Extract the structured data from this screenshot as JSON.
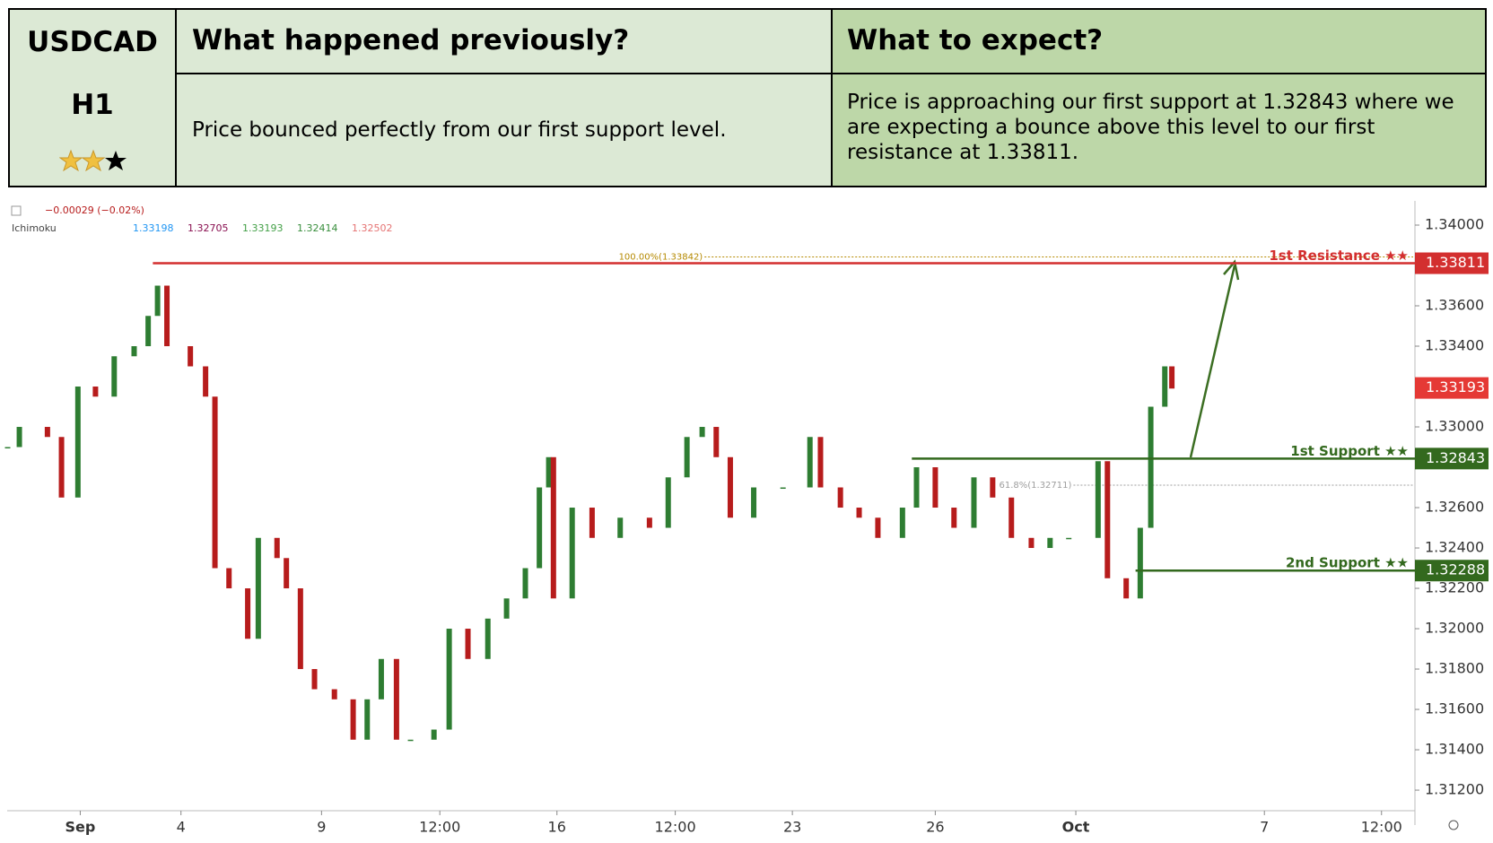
{
  "header": {
    "symbol": "USDCAD",
    "timeframe": "H1",
    "previous_title": "What happened previously?",
    "previous_text": "Price bounced perfectly from our first support level.",
    "expect_title": "What to expect?",
    "expect_text": "Price is approaching our first support at 1.32843 where we are expecting a bounce above this level to our first resistance at 1.33811."
  },
  "chart_data": {
    "type": "candlestick",
    "change": "−0.00029 (−0.02%)",
    "indicator": {
      "name": "Ichimoku",
      "values": [
        1.33198,
        1.32705,
        1.33193,
        1.32414,
        1.32502
      ],
      "colors": [
        "#2196f3",
        "#880e4f",
        "#43a047",
        "#388e3c",
        "#e57373"
      ]
    },
    "up_color": "#2e7d32",
    "down_color": "#b71c1c",
    "x": [
      0,
      1,
      3.4,
      4.6,
      6,
      7.5,
      9.1,
      10.8,
      12,
      12.8,
      13.6,
      15.6,
      16.9,
      17.7,
      18.9,
      20.5,
      21.4,
      23,
      23.8,
      25,
      26.2,
      27.9,
      29.5,
      30.7,
      31.9,
      33.2,
      34.4,
      36.4,
      37.7,
      39.3,
      41,
      42.6,
      44.2,
      45.4,
      46.2,
      46.6,
      48.2,
      49.9,
      52.3,
      54.8,
      56.4,
      58,
      59.3,
      60.5,
      61.7,
      63.7,
      66.2,
      68.5,
      69.4,
      71.1,
      72.7,
      74.3,
      76.4,
      77.6,
      79.2,
      80.8,
      82.5,
      84.1,
      85.7,
      87.4,
      89,
      90.6,
      93.1,
      93.9,
      95.5,
      96.7,
      97.6,
      98.8,
      99.4
    ],
    "values": [
      1.329,
      1.33,
      1.3295,
      1.3265,
      1.332,
      1.3315,
      1.3335,
      1.334,
      1.3355,
      1.337,
      1.334,
      1.333,
      1.3315,
      1.323,
      1.322,
      1.3195,
      1.3245,
      1.3235,
      1.322,
      1.318,
      1.317,
      1.3165,
      1.3145,
      1.3165,
      1.3185,
      1.3145,
      1.3145,
      1.315,
      1.32,
      1.3185,
      1.3205,
      1.3215,
      1.323,
      1.327,
      1.3285,
      1.3215,
      1.326,
      1.3245,
      1.3255,
      1.325,
      1.3275,
      1.3295,
      1.33,
      1.3285,
      1.3255,
      1.327,
      1.327,
      1.3295,
      1.327,
      1.326,
      1.3255,
      1.3245,
      1.326,
      1.328,
      1.326,
      1.325,
      1.3275,
      1.3265,
      1.3245,
      1.324,
      1.3245,
      1.3245,
      1.3283,
      1.3225,
      1.3215,
      1.325,
      1.331,
      1.333,
      1.3319
    ],
    "last": 1.33193,
    "last_color": "#e53935",
    "xlim": [
      0,
      120
    ],
    "ylim": [
      1.31098,
      1.3412
    ],
    "xticks": [
      {
        "value": 6.2,
        "label": "Sep"
      },
      {
        "value": 14.8,
        "label": "4"
      },
      {
        "value": 26.8,
        "label": "9"
      },
      {
        "value": 36.9,
        "label": "12:00"
      },
      {
        "value": 46.9,
        "label": "16"
      },
      {
        "value": 57,
        "label": "12:00"
      },
      {
        "value": 67,
        "label": "23"
      },
      {
        "value": 79.2,
        "label": "26"
      },
      {
        "value": 91.2,
        "label": "Oct"
      },
      {
        "value": 107.3,
        "label": "7"
      },
      {
        "value": 117.3,
        "label": "12:00"
      }
    ],
    "yticks": [
      {
        "value": 1.312,
        "label": "1.31200"
      },
      {
        "value": 1.314,
        "label": "1.31400"
      },
      {
        "value": 1.316,
        "label": "1.31600"
      },
      {
        "value": 1.318,
        "label": "1.31800"
      },
      {
        "value": 1.32,
        "label": "1.32000"
      },
      {
        "value": 1.322,
        "label": "1.32200"
      },
      {
        "value": 1.324,
        "label": "1.32400"
      },
      {
        "value": 1.326,
        "label": "1.32600"
      },
      {
        "value": 1.33,
        "label": "1.33000"
      },
      {
        "value": 1.334,
        "label": "1.33400"
      },
      {
        "value": 1.336,
        "label": "1.33600"
      },
      {
        "value": 1.34,
        "label": "1.34000"
      }
    ],
    "levels": [
      {
        "label": "1st Resistance ★★",
        "value": 1.33811,
        "x": 12.4,
        "color": "#d32f2f"
      },
      {
        "label": "1st Support ★★",
        "value": 1.32843,
        "x": 77.2,
        "color": "#33691e"
      },
      {
        "label": "2nd Support ★★",
        "value": 1.32288,
        "x": 96.3,
        "color": "#33691e"
      }
    ],
    "annotations": [
      {
        "text": "100.00%(1.33842)",
        "value": 1.33842,
        "x": 59.5,
        "color": "#b58900"
      },
      {
        "text": "61.8%(1.32711)",
        "value": 1.32711,
        "x": 91,
        "color": "#9e9e9e"
      }
    ]
  }
}
